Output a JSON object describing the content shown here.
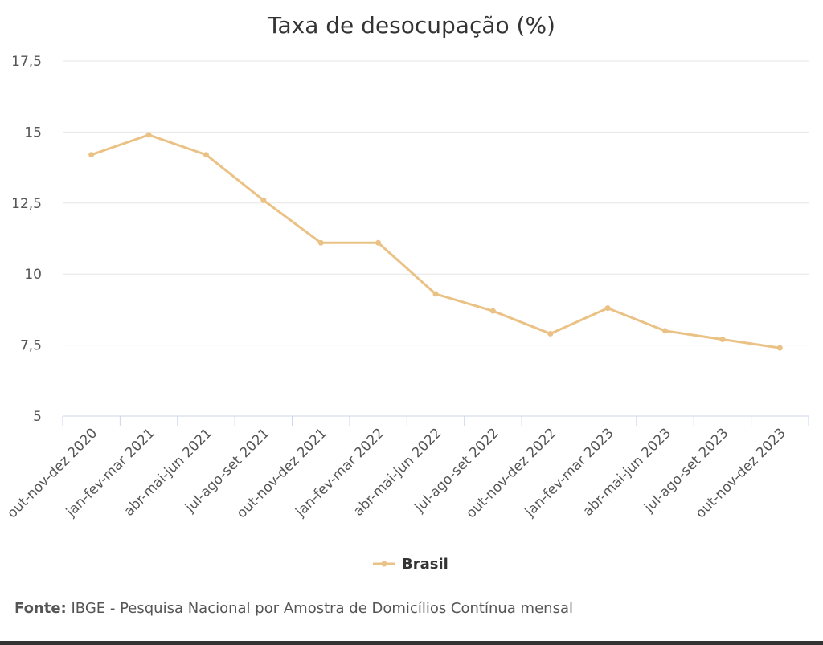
{
  "chart_data": {
    "type": "line",
    "title": "Taxa de desocupação (%)",
    "categories": [
      "out-nov-dez 2020",
      "jan-fev-mar 2021",
      "abr-mai-jun 2021",
      "jul-ago-set 2021",
      "out-nov-dez 2021",
      "jan-fev-mar 2022",
      "abr-mai-jun 2022",
      "jul-ago-set 2022",
      "out-nov-dez 2022",
      "jan-fev-mar 2023",
      "abr-mai-jun 2023",
      "jul-ago-set 2023",
      "out-nov-dez 2023"
    ],
    "series": [
      {
        "name": "Brasil",
        "values": [
          14.2,
          14.9,
          14.2,
          12.6,
          11.1,
          11.1,
          9.3,
          8.7,
          7.9,
          8.8,
          8.0,
          7.7,
          7.4
        ]
      }
    ],
    "ylim": [
      5,
      17.5
    ],
    "yticks": [
      "5",
      "7,5",
      "10",
      "12,5",
      "15",
      "17,5"
    ],
    "ytick_values": [
      5,
      7.5,
      10,
      12.5,
      15,
      17.5
    ],
    "grid": true,
    "legend_position": "bottom-center",
    "line_color": "#EBC285"
  },
  "source": {
    "label": "Fonte:",
    "text": " IBGE - Pesquisa Nacional por Amostra de Domicílios Contínua mensal"
  }
}
